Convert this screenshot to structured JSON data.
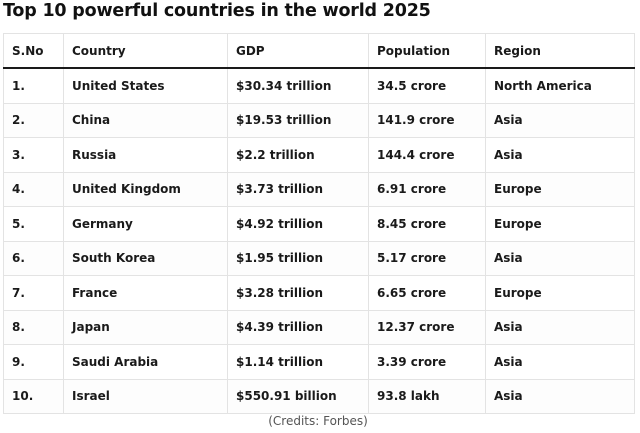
{
  "title": "Top 10 powerful countries in the world 2025",
  "table": {
    "headers": {
      "sno": "S.No",
      "country": "Country",
      "gdp": "GDP",
      "population": "Population",
      "region": "Region"
    },
    "rows": [
      {
        "sno": "1.",
        "country": "United States",
        "gdp": "$30.34 trillion",
        "population": "34.5 crore",
        "region": "North America"
      },
      {
        "sno": "2.",
        "country": "China",
        "gdp": "$19.53 trillion",
        "population": "141.9 crore",
        "region": "Asia"
      },
      {
        "sno": "3.",
        "country": "Russia",
        "gdp": "$2.2 trillion",
        "population": "144.4 crore",
        "region": "Asia"
      },
      {
        "sno": "4.",
        "country": "United Kingdom",
        "gdp": "$3.73 trillion",
        "population": "6.91 crore",
        "region": "Europe"
      },
      {
        "sno": "5.",
        "country": "Germany",
        "gdp": "$4.92 trillion",
        "population": "8.45 crore",
        "region": "Europe"
      },
      {
        "sno": "6.",
        "country": "South Korea",
        "gdp": "$1.95 trillion",
        "population": "5.17 crore",
        "region": "Asia"
      },
      {
        "sno": "7.",
        "country": "France",
        "gdp": "$3.28 trillion",
        "population": "6.65 crore",
        "region": "Europe"
      },
      {
        "sno": "8.",
        "country": "Japan",
        "gdp": "$4.39 trillion",
        "population": "12.37 crore",
        "region": "Asia"
      },
      {
        "sno": "9.",
        "country": "Saudi Arabia",
        "gdp": "$1.14 trillion",
        "population": "3.39 crore",
        "region": "Asia"
      },
      {
        "sno": "10.",
        "country": "Israel",
        "gdp": "$550.91 billion",
        "population": "93.8 lakh",
        "region": "Asia"
      }
    ]
  },
  "credits": "(Credits: Forbes)"
}
